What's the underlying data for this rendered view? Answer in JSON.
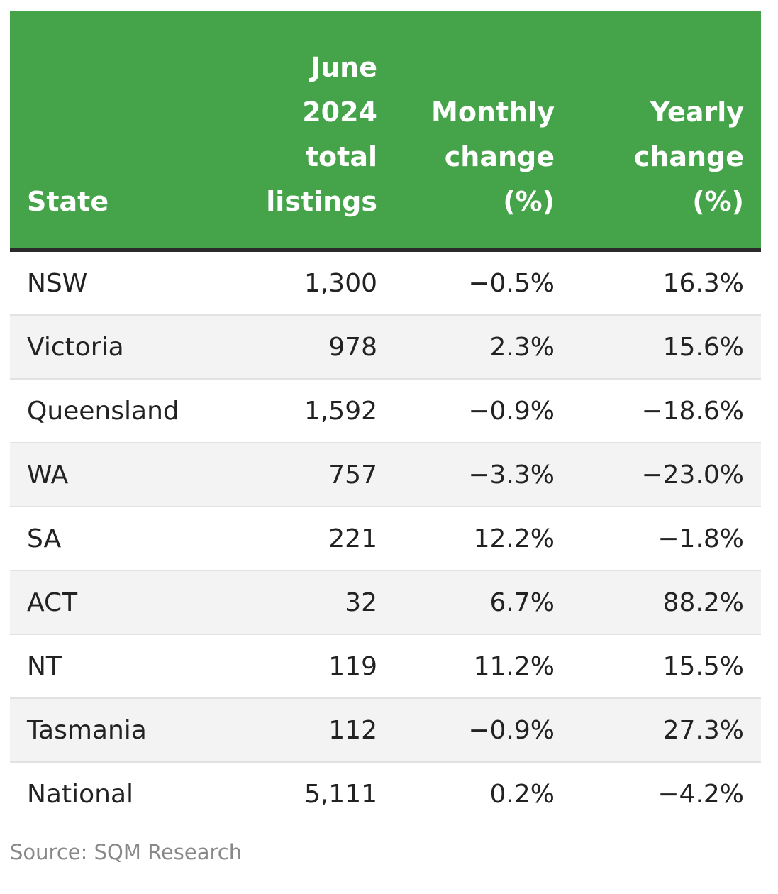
{
  "table": {
    "headers": {
      "state": "State",
      "listings": "June\n2024\ntotal\nlistings",
      "monthly": "Monthly\nchange\n(%)",
      "yearly": "Yearly\nchange\n(%)"
    },
    "rows": [
      {
        "state": "NSW",
        "listings": "1,300",
        "monthly": "−0.5%",
        "yearly": "16.3%"
      },
      {
        "state": "Victoria",
        "listings": "978",
        "monthly": "2.3%",
        "yearly": "15.6%"
      },
      {
        "state": "Queensland",
        "listings": "1,592",
        "monthly": "−0.9%",
        "yearly": "−18.6%"
      },
      {
        "state": "WA",
        "listings": "757",
        "monthly": "−3.3%",
        "yearly": "−23.0%"
      },
      {
        "state": "SA",
        "listings": "221",
        "monthly": "12.2%",
        "yearly": "−1.8%"
      },
      {
        "state": "ACT",
        "listings": "32",
        "monthly": "6.7%",
        "yearly": "88.2%"
      },
      {
        "state": "NT",
        "listings": "119",
        "monthly": "11.2%",
        "yearly": "15.5%"
      },
      {
        "state": "Tasmania",
        "listings": "112",
        "monthly": "−0.9%",
        "yearly": "27.3%"
      },
      {
        "state": "National",
        "listings": "5,111",
        "monthly": "0.2%",
        "yearly": "−4.2%"
      }
    ]
  },
  "source": "Source: SQM Research",
  "colors": {
    "header_bg": "#45a34a",
    "header_text": "#ffffff",
    "stripe": "#f3f3f3",
    "source_text": "#888888"
  }
}
